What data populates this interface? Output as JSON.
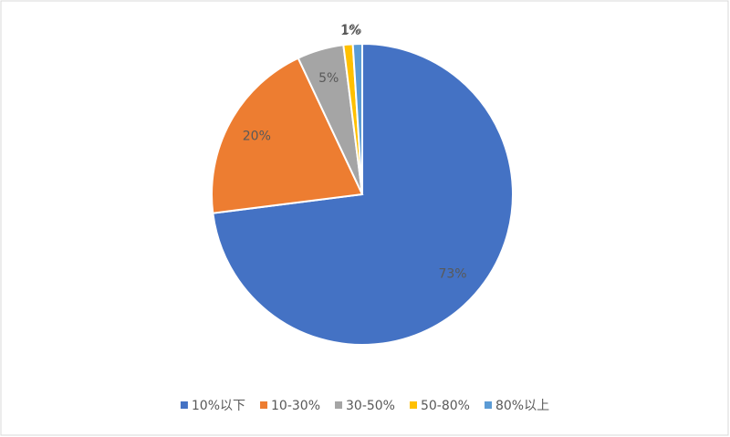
{
  "chart_data": {
    "type": "pie",
    "categories": [
      "10%以下",
      "10-30%",
      "30-50%",
      "50-80%",
      "80%以上"
    ],
    "values": [
      73,
      20,
      5,
      1,
      1
    ],
    "value_labels": [
      "73%",
      "20%",
      "5%",
      "1%",
      "1%"
    ],
    "colors": [
      "#4472c4",
      "#ed7d31",
      "#a5a5a5",
      "#ffc000",
      "#5b9bd5"
    ],
    "legend": "bottom"
  }
}
